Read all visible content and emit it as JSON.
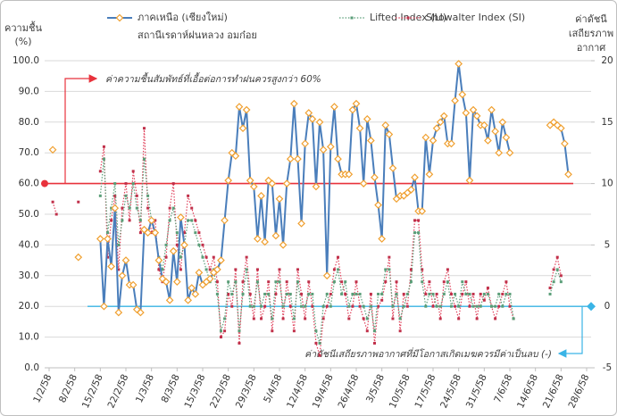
{
  "chart_data": {
    "type": "line",
    "y_label": [
      "ความชื้น",
      "(%)"
    ],
    "y2_label": [
      "ค่าดัชนี",
      "เสถียรภาพ",
      "อากาศ"
    ],
    "legend_note": "สถานีเรดาห์ฝนหลวง อมก๋อย",
    "categories": [
      "1/2/58",
      null,
      null,
      null,
      null,
      null,
      null,
      "8/2/58",
      null,
      null,
      null,
      null,
      null,
      null,
      "15/2/58",
      null,
      null,
      null,
      null,
      null,
      null,
      "22/2/58",
      null,
      null,
      null,
      null,
      null,
      null,
      "1/3/58",
      null,
      null,
      null,
      null,
      null,
      null,
      "8/3/58",
      null,
      null,
      null,
      null,
      null,
      null,
      "15/3/58",
      null,
      null,
      null,
      null,
      null,
      null,
      "22/3/58",
      null,
      null,
      null,
      null,
      null,
      null,
      "29/3/58",
      null,
      null,
      null,
      null,
      null,
      null,
      "5/4/58",
      null,
      null,
      null,
      null,
      null,
      null,
      "12/4/58",
      null,
      null,
      null,
      null,
      null,
      null,
      "19/4/58",
      null,
      null,
      null,
      null,
      null,
      null,
      "26/4/58",
      null,
      null,
      null,
      null,
      null,
      null,
      "3/5/58",
      null,
      null,
      null,
      null,
      null,
      null,
      "10/5/58",
      null,
      null,
      null,
      null,
      null,
      null,
      "17/5/58",
      null,
      null,
      null,
      null,
      null,
      null,
      "24/5/58",
      null,
      null,
      null,
      null,
      null,
      null,
      "31/5/58",
      null,
      null,
      null,
      null,
      null,
      null,
      "7/6/58",
      null,
      null,
      null,
      null,
      null,
      null,
      "14/6/58",
      null,
      null,
      null,
      null,
      null,
      null,
      "21/6/58",
      null,
      null,
      null,
      null,
      null,
      null,
      "28/6/58"
    ],
    "series": [
      {
        "name": "ภาคเหนือ (เชียงใหม่)",
        "color": "#4a7ebb",
        "marker_color": "#f0a030",
        "marker": "diamond",
        "dotted": false,
        "values": [
          null,
          71,
          null,
          null,
          null,
          null,
          null,
          null,
          36,
          null,
          null,
          null,
          null,
          null,
          42,
          20,
          42,
          33,
          52,
          18,
          30,
          35,
          27,
          27,
          19,
          18,
          45,
          44,
          48,
          44,
          35,
          29,
          28,
          22,
          38,
          28,
          49,
          40,
          22,
          26,
          24,
          31,
          27,
          28,
          29,
          31,
          32,
          35,
          48,
          61,
          70,
          69,
          85,
          78,
          84,
          61,
          59,
          42,
          56,
          41,
          61,
          60,
          43,
          55,
          40,
          60,
          68,
          86,
          68,
          47,
          73,
          83,
          81,
          59,
          80,
          71,
          30,
          72,
          85,
          68,
          63,
          63,
          63,
          84,
          86,
          78,
          60,
          81,
          74,
          62,
          53,
          42,
          79,
          76,
          65,
          55,
          56,
          56,
          57,
          58,
          62,
          51,
          51,
          75,
          63,
          74,
          78,
          80,
          82,
          73,
          73,
          87,
          99,
          89,
          83,
          61,
          84,
          82,
          79,
          79,
          74,
          84,
          77,
          70,
          80,
          75,
          70,
          null,
          null,
          null,
          null,
          null,
          null,
          null,
          null,
          null,
          null,
          79,
          80,
          79,
          78,
          73,
          63,
          null,
          null,
          null,
          null,
          null
        ]
      },
      {
        "name": "Lifted Index (LI)",
        "color": "#5a9e78",
        "marker_color": "#5a9e78",
        "marker": "square",
        "dotted": true,
        "axis": "y2",
        "values": [
          null,
          null,
          null,
          null,
          null,
          null,
          null,
          null,
          null,
          null,
          null,
          null,
          null,
          null,
          9,
          12,
          6,
          8,
          10,
          5,
          7,
          9,
          8,
          10,
          8,
          7,
          12,
          9,
          7,
          6,
          4,
          3,
          5,
          7,
          8,
          6,
          4,
          5,
          7,
          7,
          6,
          5,
          4,
          3,
          2,
          3,
          1,
          -2,
          -1,
          2,
          1,
          2,
          -2,
          1,
          3,
          0,
          0,
          2,
          0,
          1,
          1,
          -1,
          2,
          2,
          0,
          1,
          1,
          -1,
          2,
          0,
          0,
          1,
          1,
          -2,
          -3,
          0,
          1,
          0,
          2,
          3,
          1,
          2,
          0,
          1,
          1,
          1,
          0,
          -1,
          0,
          -2,
          1,
          1,
          3,
          3,
          0,
          1,
          -1,
          0,
          1,
          2,
          6,
          6,
          2,
          0,
          1,
          1,
          0,
          0,
          1,
          2,
          0,
          1,
          0,
          2,
          1,
          1,
          0,
          0,
          0,
          1,
          1,
          0,
          0,
          1,
          0,
          1,
          1,
          -1,
          null,
          null,
          null,
          null,
          null,
          null,
          null,
          null,
          null,
          1,
          2,
          3,
          2,
          null,
          null,
          null,
          null,
          null,
          null,
          null
        ]
      },
      {
        "name": "Showalter Index (SI)",
        "color": "#e0405a",
        "marker_color": "#c0304a",
        "marker": "square",
        "dotted": true,
        "axis": "y2",
        "values": [
          null,
          8.5,
          7.5,
          null,
          null,
          null,
          null,
          null,
          8.5,
          null,
          null,
          null,
          null,
          null,
          11,
          13,
          4,
          7,
          9,
          3,
          8,
          10,
          7,
          11,
          9,
          6,
          14.5,
          8,
          6,
          7,
          3,
          2,
          4,
          8,
          10,
          5,
          3,
          6,
          9,
          8,
          7,
          6,
          5,
          4,
          3,
          4,
          2,
          -2.5,
          -2,
          1,
          0,
          3,
          -3,
          2,
          4,
          1,
          -1,
          3,
          -1,
          0,
          2,
          -2,
          1,
          3,
          -1,
          2,
          0,
          -2,
          3,
          1,
          -1,
          2,
          0,
          -3,
          -4,
          -1,
          0,
          1,
          3,
          4,
          2,
          1,
          -1,
          0,
          2,
          0,
          -1,
          -2,
          1,
          -3,
          0,
          0.5,
          2,
          4,
          -1,
          2,
          -2,
          1,
          0,
          3,
          7,
          7,
          3,
          1,
          2,
          0,
          1,
          -1,
          2,
          3,
          1,
          0,
          -1,
          1,
          2,
          0,
          1,
          -1,
          1,
          0.5,
          1.5,
          0,
          -1,
          0,
          1,
          2,
          0,
          -1,
          null,
          null,
          null,
          null,
          null,
          null,
          null,
          null,
          null,
          1.5,
          3,
          4,
          2.5,
          null,
          null,
          null,
          null,
          null,
          null,
          null
        ]
      }
    ],
    "ylim": [
      0,
      100
    ],
    "yticks": [
      {
        "value": 0,
        "label": "0.0"
      },
      {
        "value": 10,
        "label": "10.0"
      },
      {
        "value": 20,
        "label": "20.0"
      },
      {
        "value": 30,
        "label": "30.0"
      },
      {
        "value": 40,
        "label": "40.0"
      },
      {
        "value": 50,
        "label": "50.0"
      },
      {
        "value": 60,
        "label": "60.0"
      },
      {
        "value": 70,
        "label": "70.0"
      },
      {
        "value": 80,
        "label": "80.0"
      },
      {
        "value": 90,
        "label": "90.0"
      },
      {
        "value": 100,
        "label": "100.0"
      }
    ],
    "y2lim": [
      -5,
      20
    ],
    "y2ticks": [
      -5,
      0,
      5,
      10,
      15,
      20
    ],
    "grid": true,
    "thresholds": [
      {
        "value": 60,
        "axis": "y",
        "color": "#e8323c",
        "label": "ค่าความชื้นสัมพัทธ์ที่เอื้อต่อการทำฝนควรสูงกว่า 60%"
      },
      {
        "value": 0,
        "axis": "y2",
        "color": "#3ab4e6",
        "label": "ค่าดัชนีเสถียรภาพอากาศที่มีโอกาสเกิดเมฆควรมีค่าเป็นลบ (-)"
      }
    ]
  }
}
